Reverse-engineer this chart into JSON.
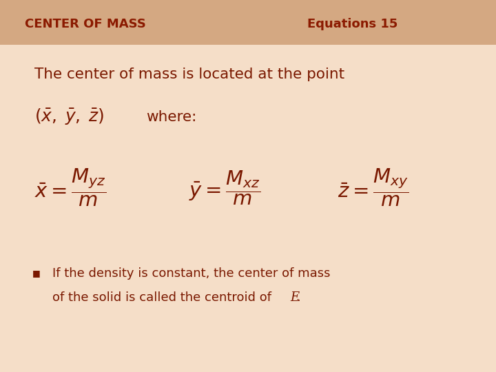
{
  "title_left": "CENTER OF MASS",
  "title_right": "Equations 15",
  "header_bg_color": "#D4A882",
  "bg_color": "#F5DEC8",
  "title_color": "#8B1A00",
  "body_text_color": "#7A1800",
  "main_text": "The center of mass is located at the point",
  "point_text": "where:",
  "bullet_line1": "If the density is constant, the center of mass",
  "bullet_line2": "of the solid is called the centroid of ",
  "bullet_E": "E",
  "figsize": [
    7.2,
    5.4
  ],
  "dpi": 100
}
